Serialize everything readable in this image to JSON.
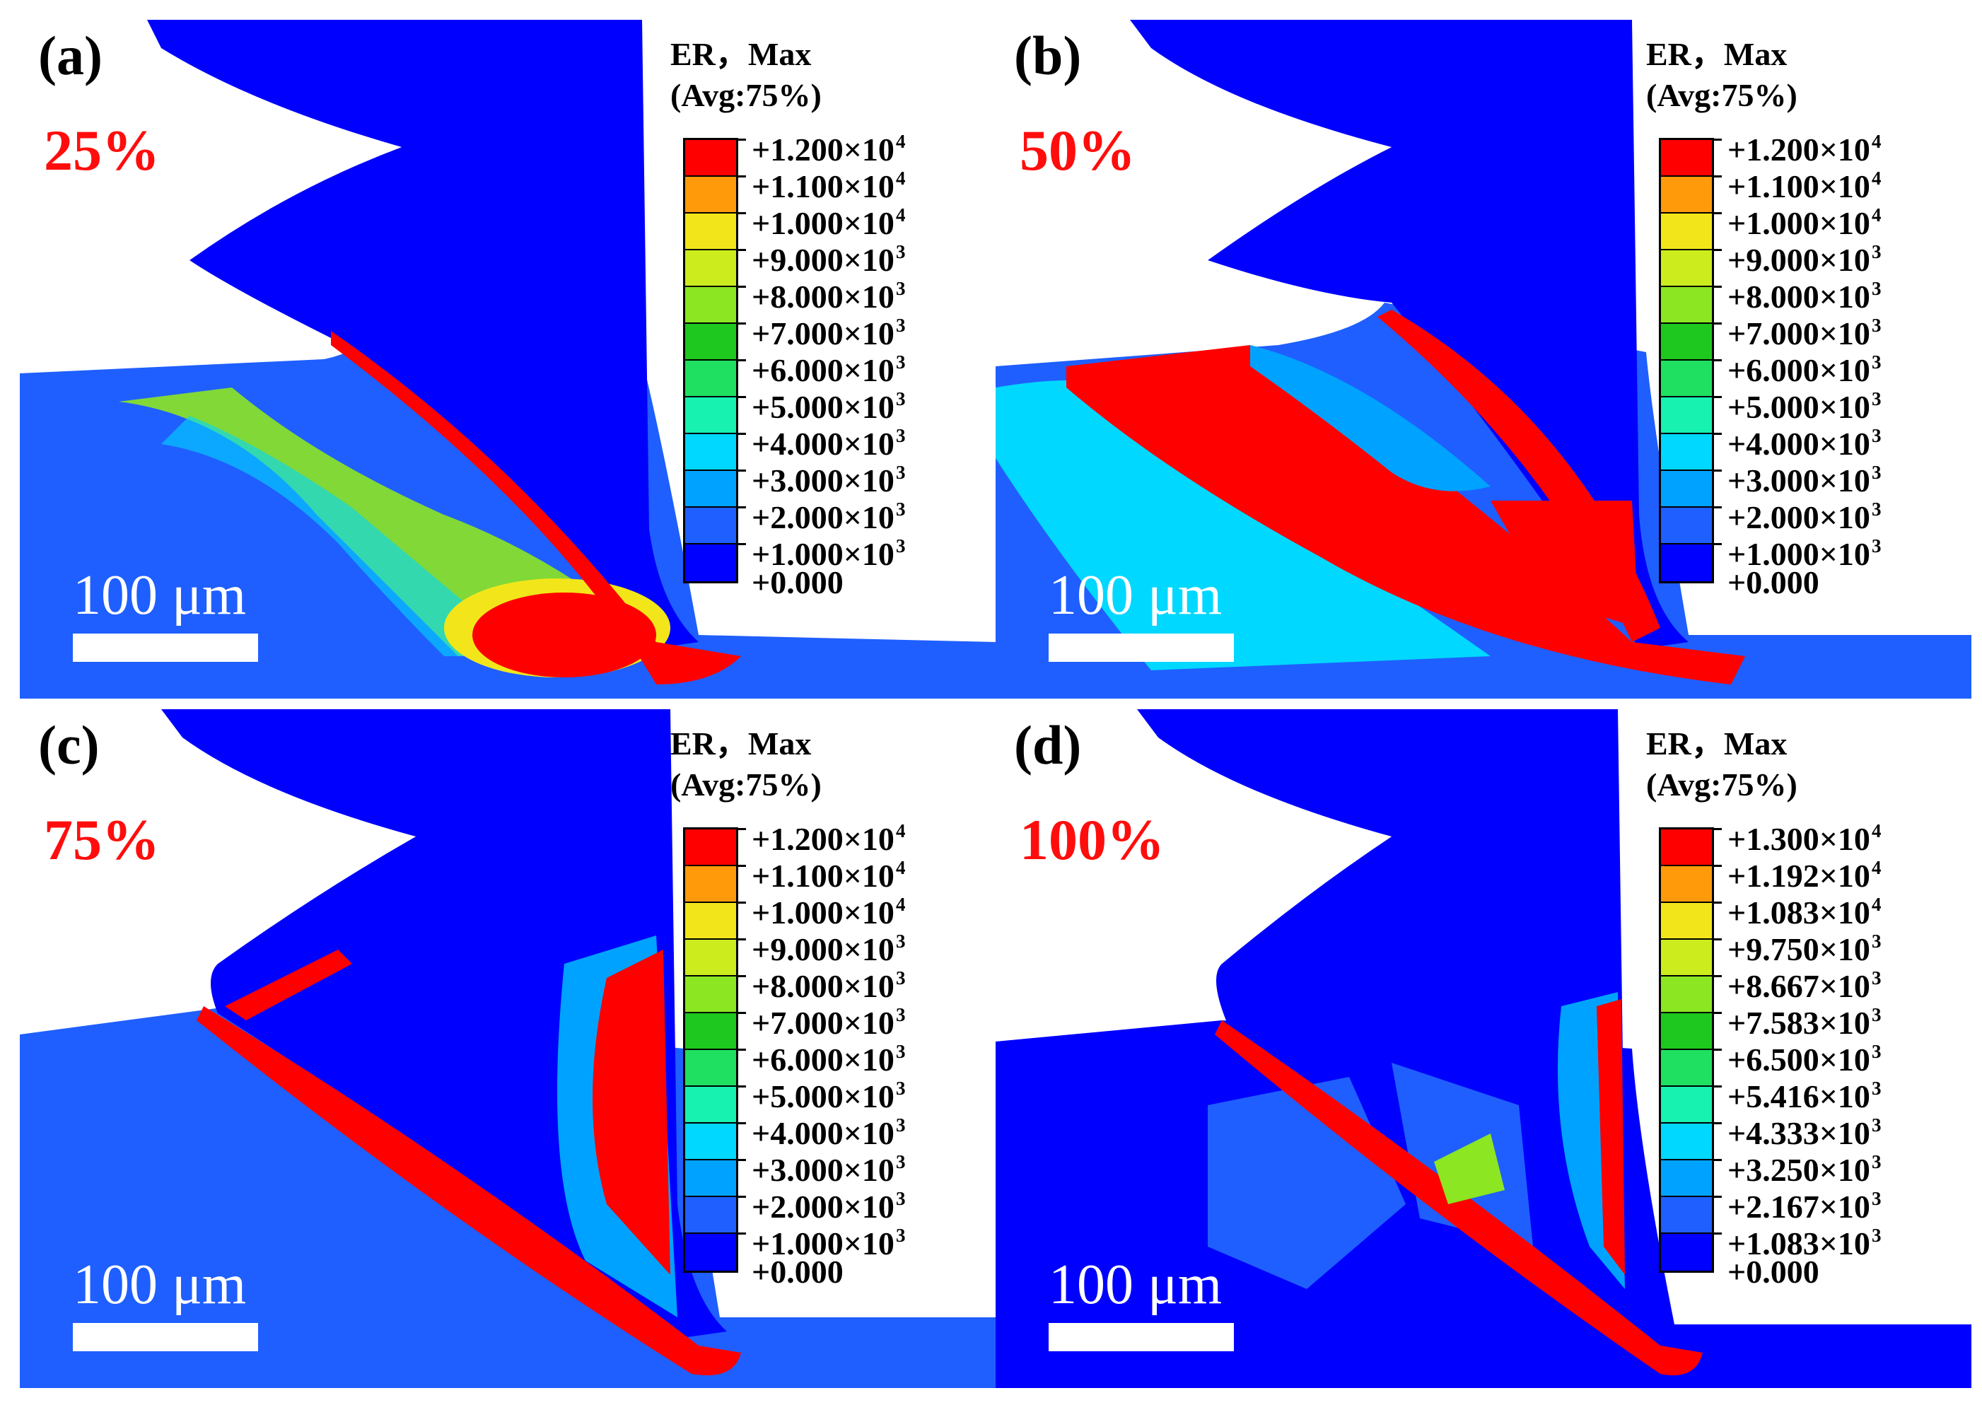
{
  "colors": [
    "#0000ff",
    "#1f5fff",
    "#00a2ff",
    "#00d8ff",
    "#17f2b0",
    "#1fe060",
    "#1ec81e",
    "#8ce621",
    "#ccec1d",
    "#f2e61a",
    "#ff9a0a",
    "#ff0000"
  ],
  "panels": [
    {
      "id": "a",
      "label": "(a)",
      "percent": "25%",
      "scale": "100 μm",
      "legend_title": "ER，Max",
      "legend_sub": "(Avg:75%)",
      "ticks": [
        "+1.200×10",
        "+1.100×10",
        "+1.000×10",
        "+9.000×10",
        "+8.000×10",
        "+7.000×10",
        "+6.000×10",
        "+5.000×10",
        "+4.000×10",
        "+3.000×10",
        "+2.000×10",
        "+1.000×10",
        "+0.000"
      ],
      "exps": [
        "4",
        "4",
        "4",
        "3",
        "3",
        "3",
        "3",
        "3",
        "3",
        "3",
        "3",
        "3",
        ""
      ]
    },
    {
      "id": "b",
      "label": "(b)",
      "percent": "50%",
      "scale": "100 μm",
      "legend_title": "ER，Max",
      "legend_sub": "(Avg:75%)",
      "ticks": [
        "+1.200×10",
        "+1.100×10",
        "+1.000×10",
        "+9.000×10",
        "+8.000×10",
        "+7.000×10",
        "+6.000×10",
        "+5.000×10",
        "+4.000×10",
        "+3.000×10",
        "+2.000×10",
        "+1.000×10",
        "+0.000"
      ],
      "exps": [
        "4",
        "4",
        "4",
        "3",
        "3",
        "3",
        "3",
        "3",
        "3",
        "3",
        "3",
        "3",
        ""
      ]
    },
    {
      "id": "c",
      "label": "(c)",
      "percent": "75%",
      "scale": "100 μm",
      "legend_title": "ER，Max",
      "legend_sub": "(Avg:75%)",
      "ticks": [
        "+1.200×10",
        "+1.100×10",
        "+1.000×10",
        "+9.000×10",
        "+8.000×10",
        "+7.000×10",
        "+6.000×10",
        "+5.000×10",
        "+4.000×10",
        "+3.000×10",
        "+2.000×10",
        "+1.000×10",
        "+0.000"
      ],
      "exps": [
        "4",
        "4",
        "4",
        "3",
        "3",
        "3",
        "3",
        "3",
        "3",
        "3",
        "3",
        "3",
        ""
      ]
    },
    {
      "id": "d",
      "label": "(d)",
      "percent": "100%",
      "scale": "100 μm",
      "legend_title": "ER，Max",
      "legend_sub": "(Avg:75%)",
      "ticks": [
        "+1.300×10",
        "+1.192×10",
        "+1.083×10",
        "+9.750×10",
        "+8.667×10",
        "+7.583×10",
        "+6.500×10",
        "+5.416×10",
        "+4.333×10",
        "+3.250×10",
        "+2.167×10",
        "+1.083×10",
        "+0.000"
      ],
      "exps": [
        "4",
        "4",
        "4",
        "3",
        "3",
        "3",
        "3",
        "3",
        "3",
        "3",
        "3",
        "3",
        ""
      ]
    }
  ]
}
